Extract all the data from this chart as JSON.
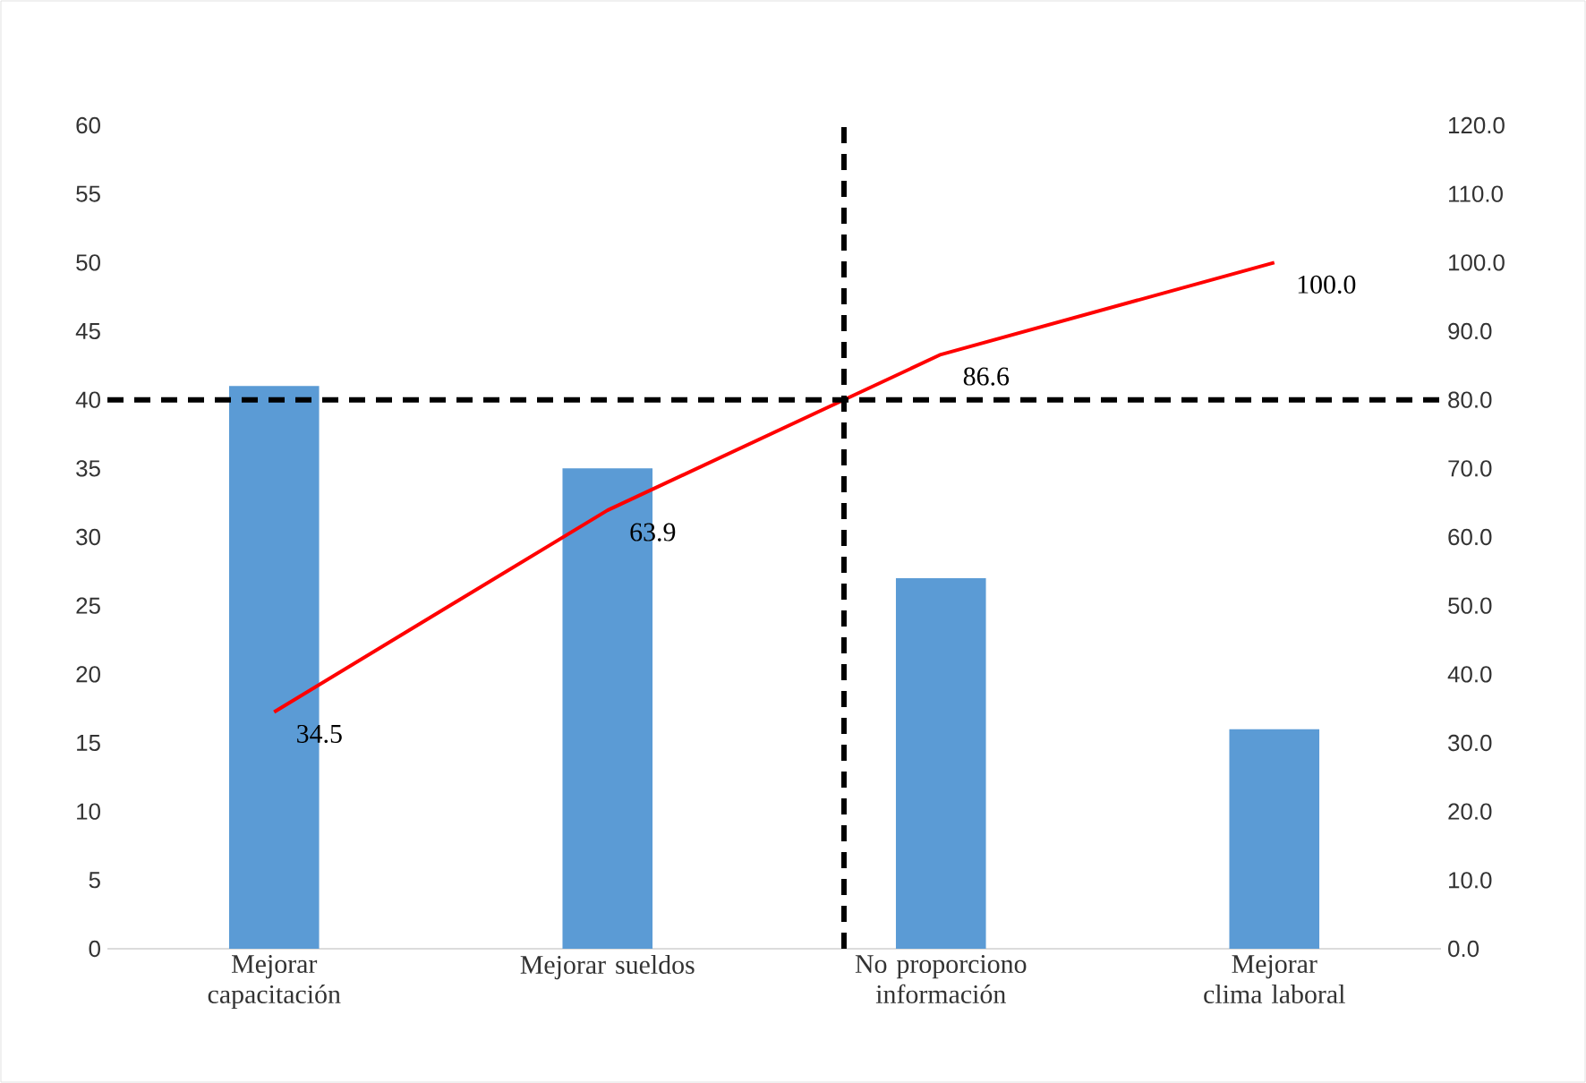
{
  "chart_data": {
    "type": "bar",
    "categories": [
      "Mejorar capacitación",
      "Mejorar sueldos",
      "No proporciono información",
      "Mejorar clima laboral"
    ],
    "series": [
      {
        "color": "#5b9bd5",
        "values": [
          41,
          35,
          27,
          16
        ]
      },
      {
        "type": "line",
        "axis": "y2",
        "color": "#ff0000",
        "values": [
          34.5,
          63.9,
          86.6,
          100.0
        ],
        "value_labels": [
          "34.5",
          "63.9",
          "86.6",
          "100.0"
        ]
      }
    ],
    "ylim": [
      0,
      60
    ],
    "yticks": [
      0,
      5,
      10,
      15,
      20,
      25,
      30,
      35,
      40,
      45,
      50,
      55,
      60
    ],
    "y2lim": [
      0,
      120
    ],
    "y2ticks": [
      {
        "value": 0,
        "label": "0.0"
      },
      {
        "value": 10,
        "label": "10.0"
      },
      {
        "value": 20,
        "label": "20.0"
      },
      {
        "value": 30,
        "label": "30.0"
      },
      {
        "value": 40,
        "label": "40.0"
      },
      {
        "value": 50,
        "label": "50.0"
      },
      {
        "value": 60,
        "label": "60.0"
      },
      {
        "value": 70,
        "label": "70.0"
      },
      {
        "value": 80,
        "label": "80.0"
      },
      {
        "value": 90,
        "label": "90.0"
      },
      {
        "value": 100,
        "label": "100.0"
      },
      {
        "value": 110,
        "label": "110.0"
      },
      {
        "value": 120,
        "label": "120.0"
      }
    ],
    "ref_lines": [
      {
        "axis": "y2",
        "value": 80,
        "color": "#000000",
        "line_style": "dashed"
      }
    ],
    "grid": false
  }
}
